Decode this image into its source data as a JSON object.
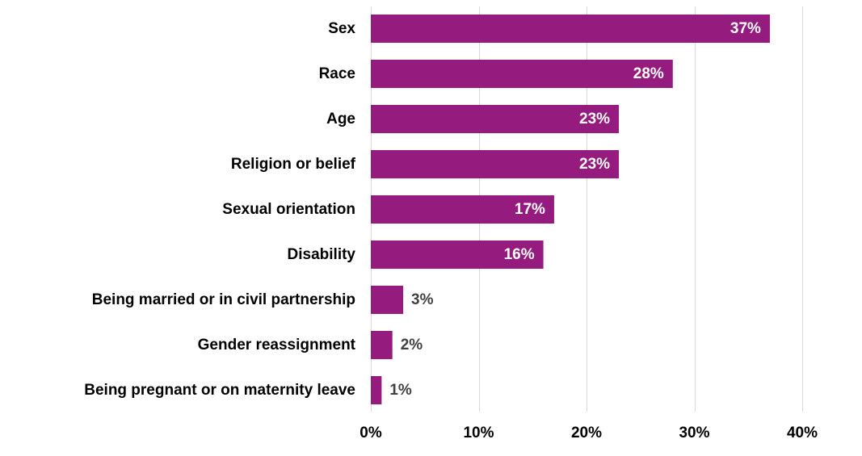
{
  "chart_data": {
    "type": "bar",
    "orientation": "horizontal",
    "categories": [
      "Sex",
      "Race",
      "Age",
      "Religion or belief",
      "Sexual orientation",
      "Disability",
      "Being married or in civil partnership",
      "Gender reassignment",
      "Being pregnant or on maternity leave"
    ],
    "values": [
      37,
      28,
      23,
      23,
      17,
      16,
      3,
      2,
      1
    ],
    "value_labels": [
      "37%",
      "28%",
      "23%",
      "23%",
      "17%",
      "16%",
      "3%",
      "2%",
      "1%"
    ],
    "xlim": [
      0,
      40
    ],
    "x_ticks": [
      0,
      10,
      20,
      30,
      40
    ],
    "x_tick_labels": [
      "0%",
      "10%",
      "20%",
      "30%",
      "40%"
    ],
    "grid": true,
    "legend": "none",
    "colors": {
      "bar": "#961b7e",
      "label_inside": "#ffffff",
      "label_outside": "#404040",
      "grid": "#d9d9d9"
    }
  }
}
